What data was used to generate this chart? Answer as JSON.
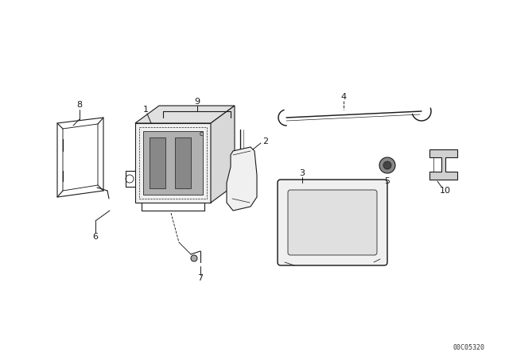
{
  "bg_color": "#ffffff",
  "line_color": "#1a1a1a",
  "fig_width": 6.4,
  "fig_height": 4.48,
  "dpi": 100,
  "watermark": "00C05320"
}
